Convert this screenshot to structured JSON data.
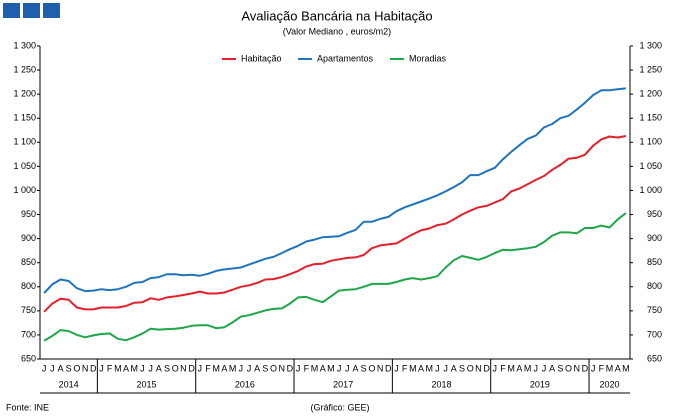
{
  "chart_data": {
    "type": "line",
    "title": "Avaliação Bancária na Habitação",
    "subtitle": "(Valor Mediano , euros/m2)",
    "source": "Fonte: INE",
    "credit": "(Gráfico: GEE)",
    "categories": [
      "J",
      "J",
      "A",
      "S",
      "O",
      "N",
      "D",
      "J",
      "F",
      "M",
      "A",
      "M",
      "J",
      "J",
      "A",
      "S",
      "O",
      "N",
      "D",
      "J",
      "F",
      "M",
      "A",
      "M",
      "J",
      "J",
      "A",
      "S",
      "O",
      "N",
      "D",
      "J",
      "F",
      "M",
      "A",
      "M",
      "J",
      "J",
      "A",
      "S",
      "O",
      "N",
      "D",
      "J",
      "F",
      "M",
      "A",
      "M",
      "J",
      "J",
      "A",
      "S",
      "O",
      "N",
      "D",
      "J",
      "F",
      "M",
      "A",
      "M",
      "J",
      "J",
      "A",
      "S",
      "O",
      "N",
      "D",
      "J",
      "F",
      "M",
      "A",
      "M"
    ],
    "years": [
      "2014",
      "2015",
      "2016",
      "2017",
      "2018",
      "2019",
      "2020"
    ],
    "series": [
      {
        "name": "Habitação",
        "color": "#e3202b",
        "values": [
          748,
          765,
          775,
          773,
          757,
          753,
          753,
          757,
          757,
          757,
          760,
          767,
          768,
          776,
          773,
          778,
          780,
          783,
          786,
          790,
          786,
          786,
          788,
          794,
          800,
          803,
          808,
          815,
          816,
          820,
          826,
          833,
          842,
          847,
          848,
          854,
          857,
          860,
          861,
          866,
          880,
          886,
          888,
          890,
          900,
          909,
          917,
          921,
          928,
          931,
          940,
          950,
          958,
          965,
          968,
          975,
          982,
          998,
          1004,
          1013,
          1022,
          1030,
          1043,
          1053,
          1066,
          1068,
          1074,
          1093,
          1106,
          1112,
          1110,
          1113
        ]
      },
      {
        "name": "Apartamentos",
        "color": "#1f74bd",
        "values": [
          787,
          805,
          815,
          812,
          797,
          791,
          792,
          795,
          793,
          795,
          800,
          808,
          810,
          818,
          820,
          826,
          826,
          824,
          825,
          823,
          827,
          833,
          836,
          838,
          840,
          846,
          852,
          858,
          862,
          870,
          878,
          885,
          894,
          898,
          903,
          904,
          905,
          912,
          918,
          935,
          935,
          941,
          945,
          957,
          965,
          971,
          977,
          983,
          990,
          998,
          1007,
          1017,
          1032,
          1032,
          1040,
          1047,
          1065,
          1080,
          1094,
          1107,
          1114,
          1131,
          1138,
          1150,
          1155,
          1168,
          1182,
          1198,
          1208,
          1208,
          1210,
          1212
        ]
      },
      {
        "name": "Moradias",
        "color": "#1fa64a",
        "values": [
          688,
          698,
          710,
          708,
          700,
          695,
          699,
          702,
          703,
          692,
          689,
          695,
          703,
          713,
          711,
          712,
          713,
          715,
          719,
          720,
          720,
          714,
          716,
          726,
          738,
          741,
          746,
          751,
          754,
          755,
          765,
          778,
          779,
          773,
          768,
          780,
          792,
          794,
          795,
          800,
          806,
          806,
          806,
          810,
          815,
          818,
          815,
          818,
          822,
          840,
          855,
          864,
          860,
          856,
          862,
          870,
          877,
          876,
          878,
          880,
          883,
          893,
          906,
          913,
          913,
          911,
          922,
          922,
          927,
          923,
          940,
          953
        ]
      }
    ],
    "ylim": [
      650,
      1300
    ],
    "yticks": [
      650,
      700,
      750,
      800,
      850,
      900,
      950,
      {
        "value": 1000,
        "label": "1 000"
      },
      {
        "value": 1050,
        "label": "1 050"
      },
      {
        "value": 1100,
        "label": "1 100"
      },
      {
        "value": 1150,
        "label": "1 150"
      },
      {
        "value": 1200,
        "label": "1 200"
      },
      {
        "value": 1250,
        "label": "1 250"
      },
      {
        "value": 1300,
        "label": "1 300"
      }
    ],
    "y2lim": [
      650,
      1300
    ],
    "y2ticks": [
      650,
      700,
      750,
      800,
      850,
      900,
      950,
      {
        "value": 1000,
        "label": "1 000"
      },
      {
        "value": 1050,
        "label": "1 050"
      },
      {
        "value": 1100,
        "label": "1 100"
      },
      {
        "value": 1150,
        "label": "1 150"
      },
      {
        "value": 1200,
        "label": "1 200"
      },
      {
        "value": 1250,
        "label": "1 250"
      },
      {
        "value": 1300,
        "label": "1 300"
      }
    ],
    "grid": false,
    "legend": "top"
  }
}
